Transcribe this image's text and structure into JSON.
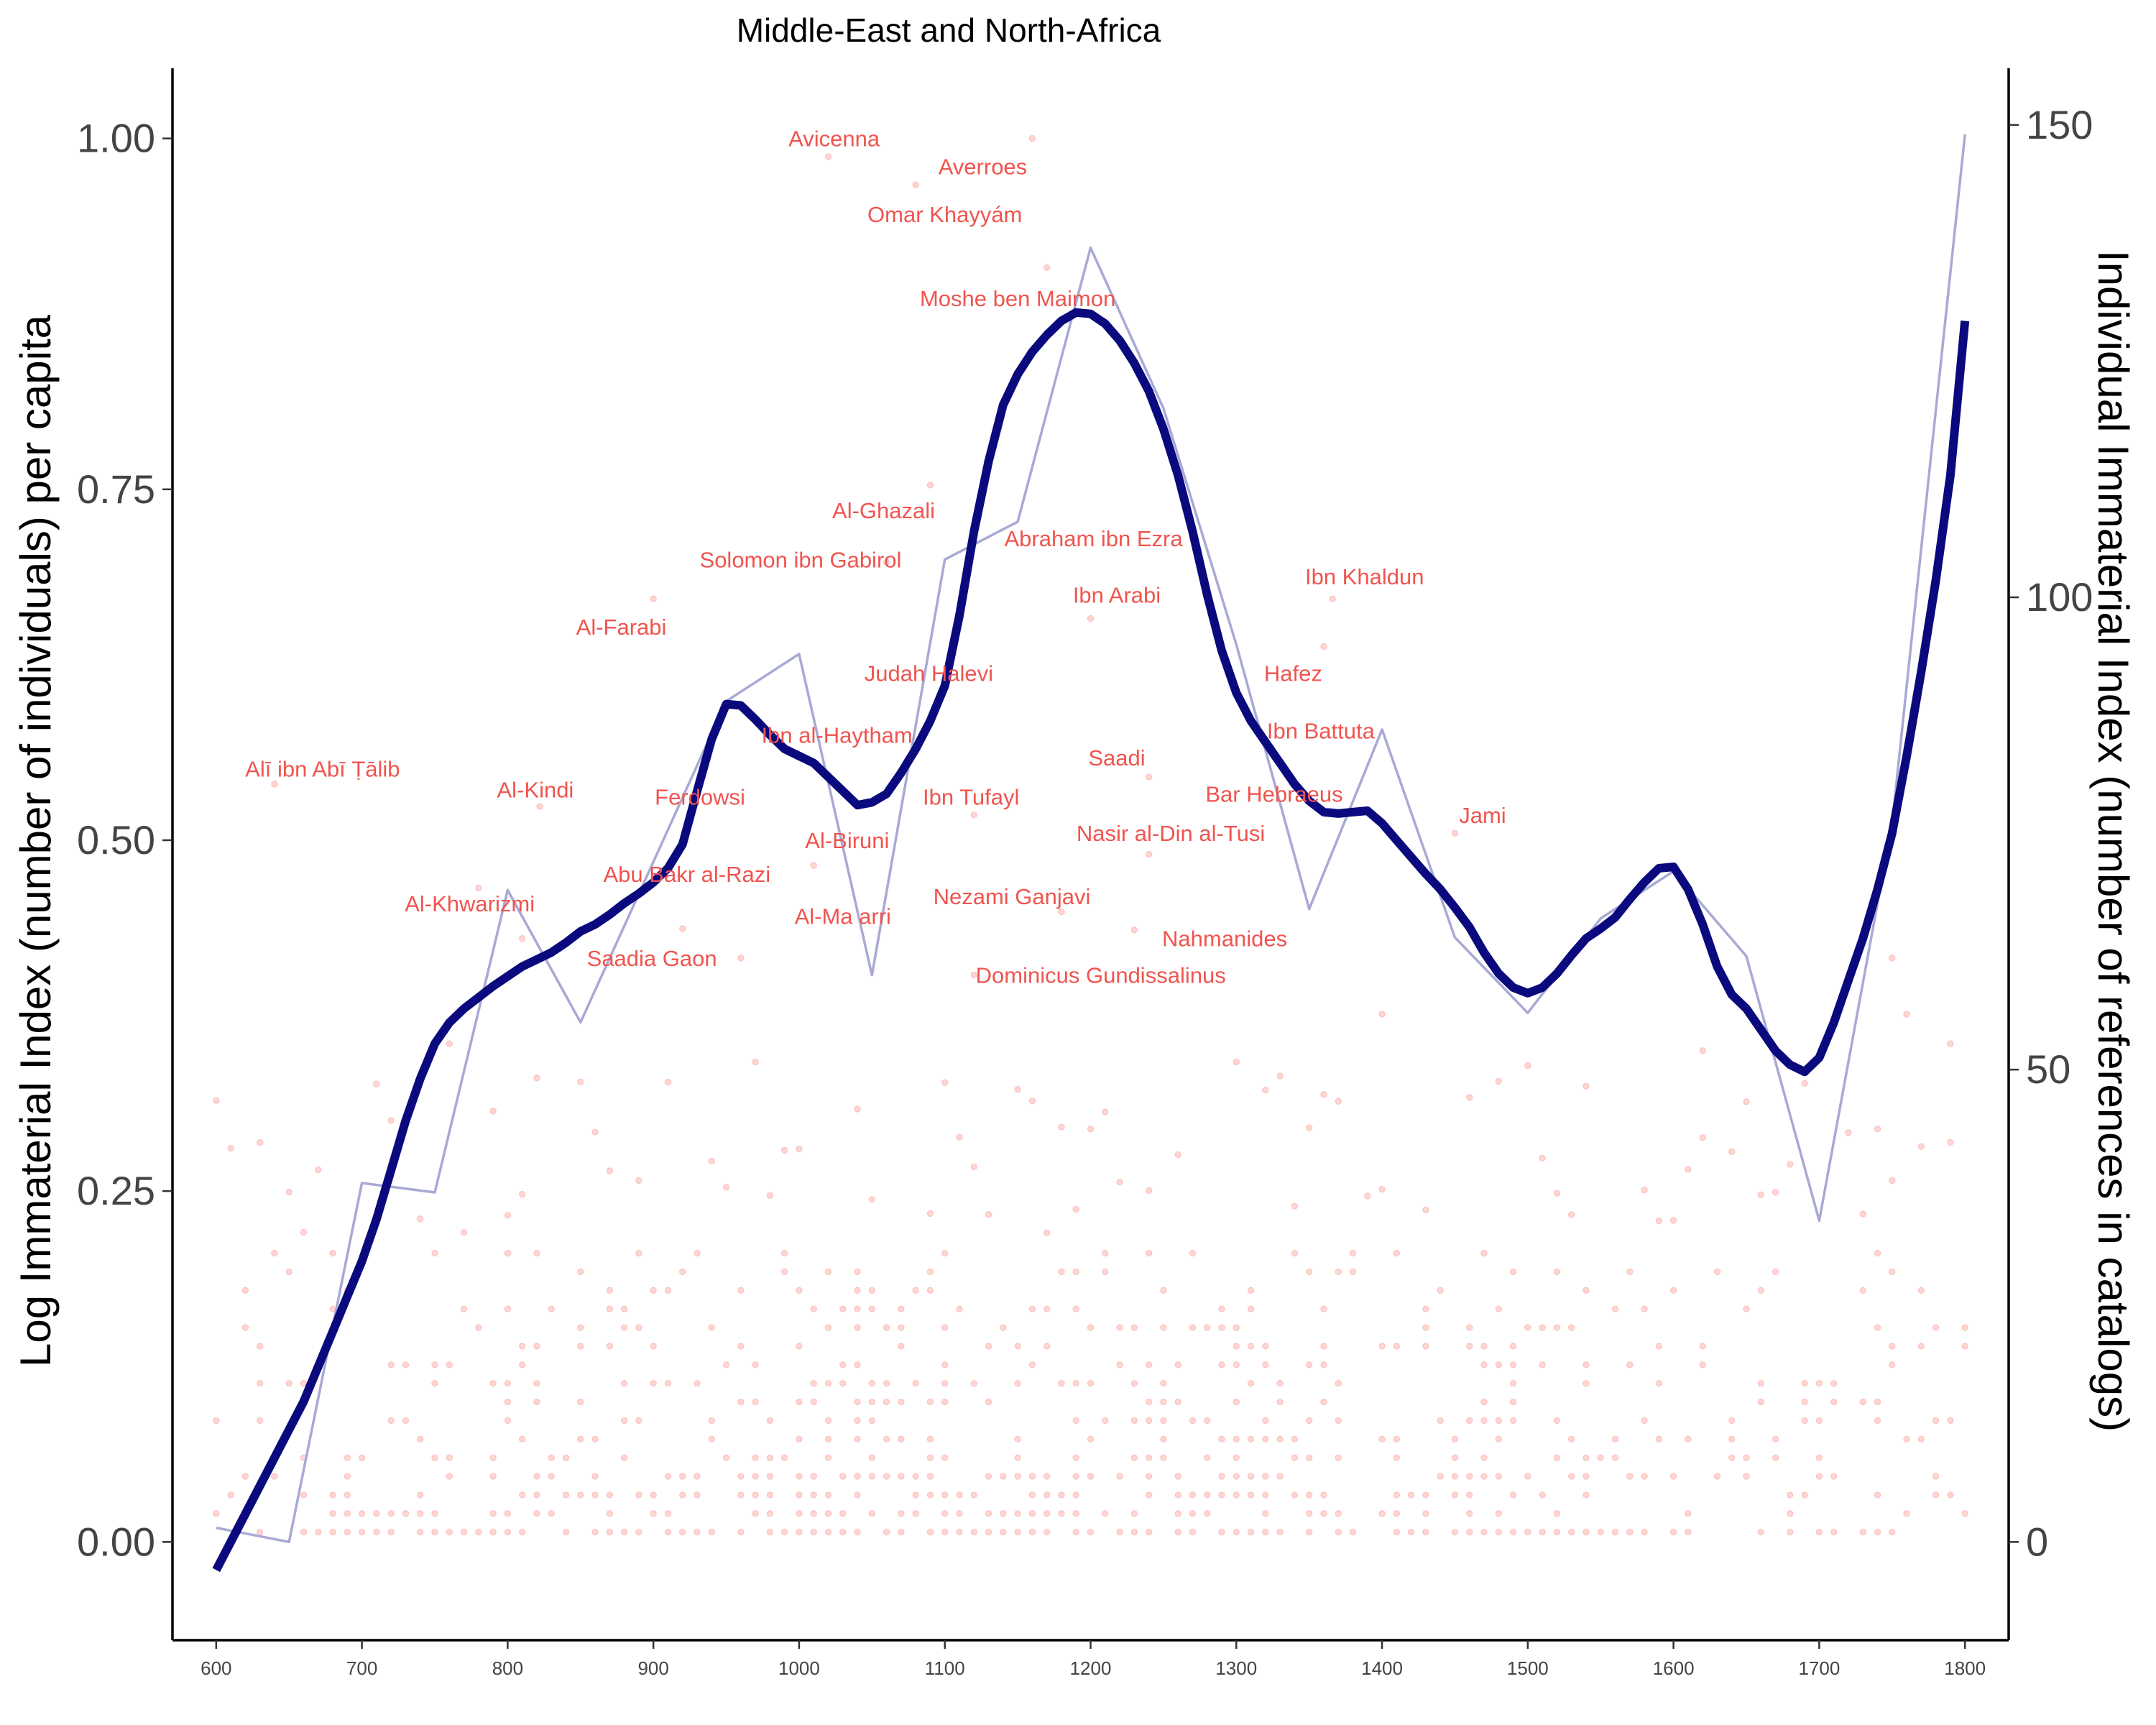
{
  "chart_data": {
    "type": "line",
    "title": "Middle-East and North-Africa",
    "ylabel": "Log Immaterial Index (number of individuals) per capita",
    "y2label": "Individual Immaterial Index (number of references in catalogs)",
    "xlim": [
      570,
      1830
    ],
    "ylim": [
      -0.07,
      1.05
    ],
    "y2lim": [
      -10.4,
      156
    ],
    "x_ticks": [
      600,
      700,
      800,
      900,
      1000,
      1100,
      1200,
      1300,
      1400,
      1500,
      1600,
      1700,
      1800
    ],
    "y_ticks": [
      0.0,
      0.25,
      0.5,
      0.75,
      1.0
    ],
    "y_tick_labels": [
      "0.00",
      "0.25",
      "0.50",
      "0.75",
      "1.00"
    ],
    "y2_ticks": [
      0,
      50,
      100,
      150
    ],
    "y2_tick_labels": [
      "0",
      "50",
      "100",
      "150"
    ],
    "grid": false,
    "colors": {
      "smooth": "#0a0a7e",
      "raw": "#a9a9d6",
      "points": "#f8766d",
      "annotations": "#f0544f"
    },
    "series": [
      {
        "style": "thick smoothed line",
        "x": [
          600,
          610,
          620,
          630,
          640,
          650,
          660,
          670,
          680,
          690,
          700,
          710,
          720,
          730,
          740,
          750,
          760,
          770,
          780,
          790,
          800,
          810,
          820,
          830,
          840,
          850,
          860,
          870,
          880,
          890,
          900,
          910,
          920,
          930,
          940,
          950,
          960,
          970,
          980,
          990,
          1000,
          1010,
          1020,
          1030,
          1040,
          1050,
          1060,
          1070,
          1080,
          1090,
          1100,
          1110,
          1120,
          1130,
          1140,
          1150,
          1160,
          1170,
          1180,
          1190,
          1200,
          1210,
          1220,
          1230,
          1240,
          1250,
          1260,
          1270,
          1280,
          1290,
          1300,
          1310,
          1320,
          1330,
          1340,
          1350,
          1360,
          1370,
          1380,
          1390,
          1400,
          1410,
          1420,
          1430,
          1440,
          1450,
          1460,
          1470,
          1480,
          1490,
          1500,
          1510,
          1520,
          1530,
          1540,
          1550,
          1560,
          1570,
          1580,
          1590,
          1600,
          1610,
          1620,
          1630,
          1640,
          1650,
          1660,
          1670,
          1680,
          1690,
          1700,
          1710,
          1720,
          1730,
          1740,
          1750,
          1760,
          1770,
          1780,
          1790,
          1800
        ],
        "y": [
          -0.02,
          0.0,
          0.02,
          0.04,
          0.06,
          0.08,
          0.1,
          0.125,
          0.15,
          0.175,
          0.2,
          0.23,
          0.265,
          0.3,
          0.33,
          0.355,
          0.37,
          0.38,
          0.388,
          0.396,
          0.403,
          0.41,
          0.415,
          0.42,
          0.427,
          0.435,
          0.44,
          0.447,
          0.455,
          0.462,
          0.47,
          0.48,
          0.497,
          0.535,
          0.572,
          0.597,
          0.596,
          0.586,
          0.575,
          0.565,
          0.56,
          0.555,
          0.545,
          0.535,
          0.525,
          0.527,
          0.533,
          0.548,
          0.565,
          0.585,
          0.61,
          0.66,
          0.72,
          0.77,
          0.81,
          0.832,
          0.848,
          0.86,
          0.87,
          0.876,
          0.875,
          0.868,
          0.856,
          0.84,
          0.82,
          0.793,
          0.76,
          0.72,
          0.675,
          0.635,
          0.605,
          0.585,
          0.57,
          0.555,
          0.54,
          0.528,
          0.52,
          0.519,
          0.52,
          0.521,
          0.512,
          0.5,
          0.488,
          0.476,
          0.465,
          0.452,
          0.438,
          0.42,
          0.405,
          0.395,
          0.391,
          0.395,
          0.405,
          0.418,
          0.43,
          0.437,
          0.445,
          0.458,
          0.47,
          0.48,
          0.481,
          0.465,
          0.44,
          0.41,
          0.39,
          0.38,
          0.365,
          0.35,
          0.34,
          0.335,
          0.345,
          0.37,
          0.4,
          0.43,
          0.465,
          0.505,
          0.56,
          0.62,
          0.685,
          0.76,
          0.87
        ]
      },
      {
        "style": "thin raw line",
        "axis": "right",
        "x": [
          600,
          650,
          700,
          750,
          800,
          850,
          950,
          1000,
          1050,
          1100,
          1150,
          1200,
          1250,
          1300,
          1350,
          1400,
          1450,
          1500,
          1550,
          1600,
          1650,
          1700,
          1750,
          1800
        ],
        "y": [
          1.5,
          0,
          38,
          37,
          69,
          55,
          89,
          94,
          60,
          104,
          108,
          137,
          120,
          95,
          67,
          86,
          64,
          56,
          66,
          71,
          62,
          34,
          76,
          149
        ]
      }
    ],
    "annotations": [
      {
        "x": 1024,
        "y": 1.0,
        "text": "Avicenna"
      },
      {
        "x": 1126,
        "y": 0.98,
        "text": "Averroes"
      },
      {
        "x": 1100,
        "y": 0.946,
        "text": "Omar Khayyám"
      },
      {
        "x": 1150,
        "y": 0.886,
        "text": "Moshe ben Maimon"
      },
      {
        "x": 1058,
        "y": 0.735,
        "text": "Al-Ghazali"
      },
      {
        "x": 1001,
        "y": 0.7,
        "text": "Solomon ibn Gabirol"
      },
      {
        "x": 1202,
        "y": 0.715,
        "text": "Abraham ibn Ezra"
      },
      {
        "x": 1218,
        "y": 0.675,
        "text": "Ibn Arabi"
      },
      {
        "x": 1388,
        "y": 0.688,
        "text": "Ibn Khaldun"
      },
      {
        "x": 878,
        "y": 0.652,
        "text": "Al-Farabi"
      },
      {
        "x": 1089,
        "y": 0.619,
        "text": "Judah Halevi"
      },
      {
        "x": 1339,
        "y": 0.619,
        "text": "Hafez"
      },
      {
        "x": 1026,
        "y": 0.575,
        "text": "Ibn al-Haytham"
      },
      {
        "x": 1358,
        "y": 0.578,
        "text": "Ibn Battuta"
      },
      {
        "x": 673,
        "y": 0.551,
        "text": "Alī ibn Abī Ṭālib"
      },
      {
        "x": 1218,
        "y": 0.559,
        "text": "Saadi"
      },
      {
        "x": 819,
        "y": 0.536,
        "text": "Al-Kindi"
      },
      {
        "x": 932,
        "y": 0.531,
        "text": "Ferdowsi"
      },
      {
        "x": 1118,
        "y": 0.531,
        "text": "Ibn Tufayl"
      },
      {
        "x": 1326,
        "y": 0.533,
        "text": "Bar Hebraeus"
      },
      {
        "x": 1469,
        "y": 0.518,
        "text": "Jami"
      },
      {
        "x": 1033,
        "y": 0.5,
        "text": "Al-Biruni"
      },
      {
        "x": 1255,
        "y": 0.505,
        "text": "Nasir al-Din al-Tusi"
      },
      {
        "x": 923,
        "y": 0.476,
        "text": "Abu Bakr al-Razi"
      },
      {
        "x": 1146,
        "y": 0.46,
        "text": "Nezami Ganjavi"
      },
      {
        "x": 774,
        "y": 0.455,
        "text": "Al-Khwarizmi"
      },
      {
        "x": 1030,
        "y": 0.446,
        "text": "Al-Ma arri"
      },
      {
        "x": 1292,
        "y": 0.43,
        "text": "Nahmanides"
      },
      {
        "x": 1207,
        "y": 0.404,
        "text": "Dominicus Gundissalinus"
      },
      {
        "x": 899,
        "y": 0.416,
        "text": "Saadia Gaon"
      }
    ],
    "scatter": {
      "description": "translucent red points, one per individual, each plotted at a y value",
      "anchors": [
        {
          "x": 640,
          "y": 0.54
        },
        {
          "x": 822,
          "y": 0.524
        },
        {
          "x": 900,
          "y": 0.672
        },
        {
          "x": 1020,
          "y": 0.987
        },
        {
          "x": 1080,
          "y": 0.967
        },
        {
          "x": 1160,
          "y": 1.0
        },
        {
          "x": 1170,
          "y": 0.908
        },
        {
          "x": 1200,
          "y": 0.658
        },
        {
          "x": 1060,
          "y": 0.698
        },
        {
          "x": 1090,
          "y": 0.753
        },
        {
          "x": 1366,
          "y": 0.672
        },
        {
          "x": 1360,
          "y": 0.638
        },
        {
          "x": 1450,
          "y": 0.505
        },
        {
          "x": 1240,
          "y": 0.49
        },
        {
          "x": 1240,
          "y": 0.545
        },
        {
          "x": 1010,
          "y": 0.482
        },
        {
          "x": 920,
          "y": 0.437
        },
        {
          "x": 960,
          "y": 0.416
        },
        {
          "x": 1120,
          "y": 0.518
        },
        {
          "x": 1230,
          "y": 0.436
        },
        {
          "x": 1180,
          "y": 0.449
        },
        {
          "x": 1120,
          "y": 0.404
        },
        {
          "x": 810,
          "y": 0.43
        },
        {
          "x": 780,
          "y": 0.466
        },
        {
          "x": 760,
          "y": 0.355
        },
        {
          "x": 970,
          "y": 0.342
        },
        {
          "x": 1400,
          "y": 0.376
        },
        {
          "x": 1620,
          "y": 0.35
        },
        {
          "x": 1760,
          "y": 0.376
        },
        {
          "x": 1790,
          "y": 0.355
        },
        {
          "x": 1750,
          "y": 0.416
        },
        {
          "x": 1300,
          "y": 0.342
        }
      ]
    }
  }
}
